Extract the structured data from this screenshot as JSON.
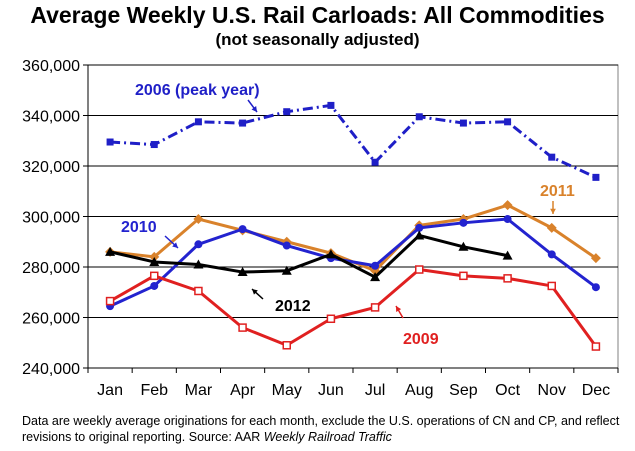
{
  "chart_data": {
    "type": "line",
    "title": "Average Weekly U.S. Rail Carloads: All Commodities",
    "subtitle": "(not seasonally adjusted)",
    "categories": [
      "Jan",
      "Feb",
      "Mar",
      "Apr",
      "May",
      "Jun",
      "Jul",
      "Aug",
      "Sep",
      "Oct",
      "Nov",
      "Dec"
    ],
    "ylim": [
      240000,
      360000
    ],
    "yticks": [
      240000,
      260000,
      280000,
      300000,
      320000,
      340000,
      360000
    ],
    "ytick_labels": [
      "240,000",
      "260,000",
      "280,000",
      "300,000",
      "320,000",
      "340,000",
      "360,000"
    ],
    "grid": "horizontal",
    "series": [
      {
        "name": "2006 (peak year)",
        "color": "#1f1fc7",
        "line_style": "dash-dot",
        "marker": "square",
        "values": [
          329500,
          328500,
          337500,
          337000,
          341500,
          344000,
          321500,
          339500,
          337000,
          337500,
          323500,
          315500
        ]
      },
      {
        "name": "2011",
        "color": "#d9822b",
        "line_style": "solid",
        "marker": "diamond",
        "values": [
          286000,
          284000,
          299000,
          294500,
          290000,
          285500,
          278500,
          296500,
          299000,
          304500,
          295500,
          283500
        ]
      },
      {
        "name": "2010",
        "color": "#2323cf",
        "line_style": "solid",
        "marker": "circle",
        "values": [
          264500,
          272500,
          289000,
          295000,
          288500,
          283500,
          280500,
          295500,
          297500,
          299000,
          285000,
          272000
        ]
      },
      {
        "name": "2012",
        "color": "#000000",
        "line_style": "solid",
        "marker": "triangle",
        "values": [
          286000,
          282000,
          281000,
          278000,
          278500,
          285000,
          276000,
          292500,
          288000,
          284500,
          null,
          null
        ]
      },
      {
        "name": "2009",
        "color": "#e02020",
        "line_style": "solid",
        "marker": "open-square",
        "values": [
          266500,
          276500,
          270500,
          256000,
          249000,
          259500,
          264000,
          279000,
          276500,
          275500,
          272500,
          248500
        ]
      }
    ],
    "annotations": [
      {
        "text": "2006 (peak year)",
        "series": "2006 (peak year)",
        "color": "#1f1fc7"
      },
      {
        "text": "2011",
        "series": "2011",
        "color": "#d9822b"
      },
      {
        "text": "2010",
        "series": "2010",
        "color": "#2323cf"
      },
      {
        "text": "2012",
        "series": "2012",
        "color": "#000000"
      },
      {
        "text": "2009",
        "series": "2009",
        "color": "#e02020"
      }
    ]
  },
  "footnote": {
    "text": "Data are weekly average originations for each month, exclude the U.S. operations of CN and CP, and reflect revisions to original reporting.  Source: AAR ",
    "source_italic": "Weekly Railroad Traffic"
  }
}
